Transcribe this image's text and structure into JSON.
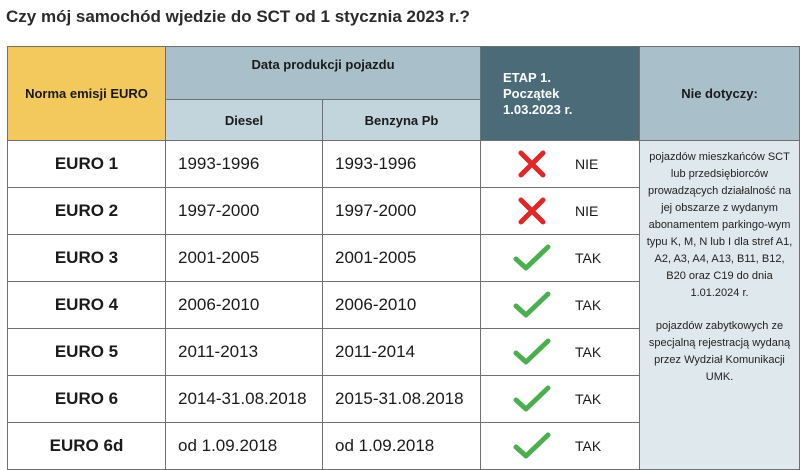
{
  "title": "Czy mój samochód wjedzie do SCT od 1 stycznia 2023 r.?",
  "header": {
    "norma": "Norma emisji EURO",
    "data_produkcji": "Data produkcji pojazdu",
    "diesel": "Diesel",
    "benzyna": "Benzyna Pb",
    "etap_title": "ETAP 1.",
    "etap_sub1": "Początek",
    "etap_sub2": "1.03.2023 r.",
    "nie_dotyczy": "Nie dotyczy:"
  },
  "colors": {
    "norma_header": "#f3c95e",
    "data_header": "#a9c0cb",
    "sub_header": "#c2d4dc",
    "etap_header": "#4b6b79",
    "nie_body": "#dfe8ec",
    "cross": "#e02626",
    "check": "#4caf4f"
  },
  "rows": [
    {
      "norma": "EURO 1",
      "diesel": "1993-1996",
      "benzyna": "1993-1996",
      "icon": "cross-icon",
      "status": "NIE"
    },
    {
      "norma": "EURO 2",
      "diesel": "1997-2000",
      "benzyna": "1997-2000",
      "icon": "cross-icon",
      "status": "NIE"
    },
    {
      "norma": "EURO 3",
      "diesel": "2001-2005",
      "benzyna": "2001-2005",
      "icon": "check-icon",
      "status": "TAK"
    },
    {
      "norma": "EURO 4",
      "diesel": "2006-2010",
      "benzyna": "2006-2010",
      "icon": "check-icon",
      "status": "TAK"
    },
    {
      "norma": "EURO 5",
      "diesel": "2011-2013",
      "benzyna": "2011-2014",
      "icon": "check-icon",
      "status": "TAK"
    },
    {
      "norma": "EURO 6",
      "diesel": "2014-31.08.2018",
      "benzyna": "2015-31.08.2018",
      "icon": "check-icon",
      "status": "TAK"
    },
    {
      "norma": "EURO 6d",
      "diesel": "od 1.09.2018",
      "benzyna": "od 1.09.2018",
      "icon": "check-icon",
      "status": "TAK"
    }
  ],
  "nie_dotyczy": {
    "paragraph1": "pojazdów mieszkańców SCT lub przedsiębiorców prowadzących działalność na jej obszarze z wydanym abonamentem parkingo-wym typu K, M, N lub I dla stref A1, A2, A3, A4, A13, B11, B12, B20 oraz C19 do dnia 1.01.2024 r.",
    "paragraph2": "pojazdów zabytkowych ze specjalną rejestracją wydaną przez Wydział Komunikacji UMK."
  }
}
